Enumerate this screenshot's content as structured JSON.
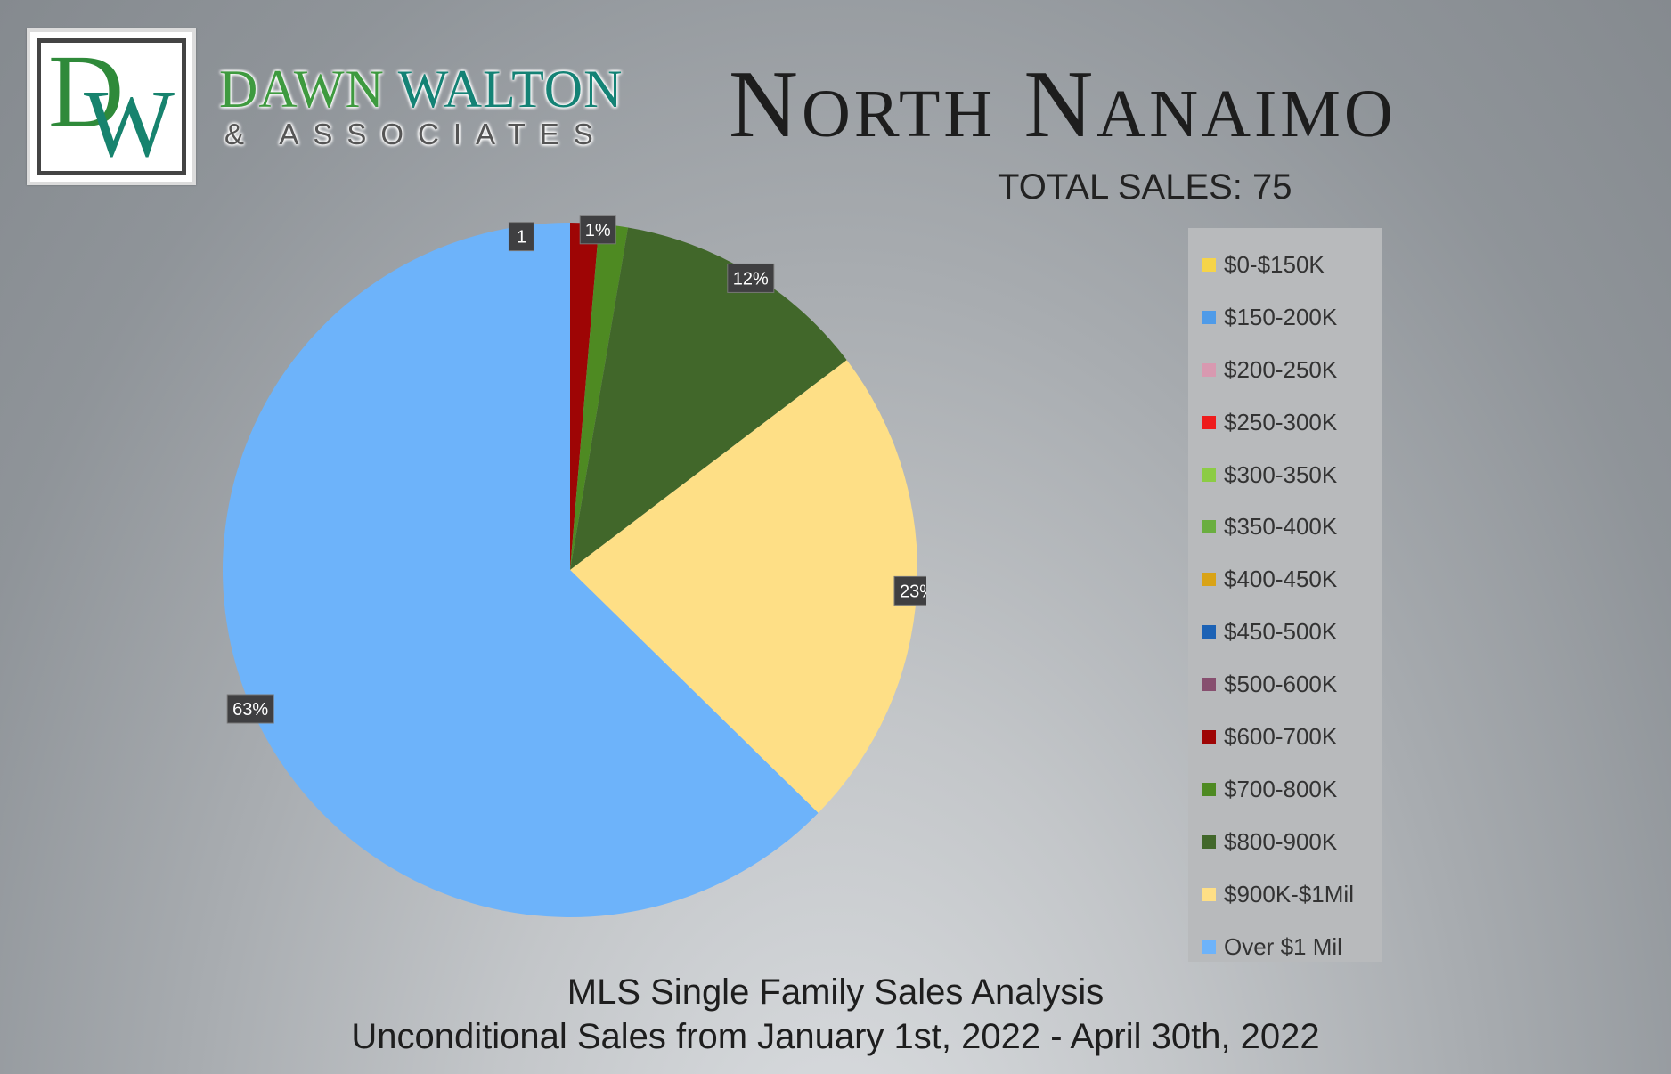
{
  "brand": {
    "monogram_d": "D",
    "monogram_w": "W",
    "name_first": "DAWN",
    "name_last": "WALTON",
    "subtitle": "& ASSOCIATES"
  },
  "header": {
    "title": "North Nanaimo",
    "total_sales": "TOTAL SALES: 75"
  },
  "footer": {
    "line1": "MLS Single Family Sales Analysis",
    "line2": "Unconditional Sales from January 1st, 2022 - April 30th, 2022"
  },
  "chart_data": {
    "type": "pie",
    "start_angle": "12 o'clock",
    "direction": "clockwise",
    "legend_position": "right",
    "slices": [
      {
        "label": "$0-$150K",
        "count": 0,
        "color": "#f6d449"
      },
      {
        "label": "$150-200K",
        "count": 0,
        "color": "#4f9be8"
      },
      {
        "label": "$200-250K",
        "count": 0,
        "color": "#d899b0"
      },
      {
        "label": "$250-300K",
        "count": 0,
        "color": "#ee1c1c"
      },
      {
        "label": "$300-350K",
        "count": 0,
        "color": "#8ccc44"
      },
      {
        "label": "$350-400K",
        "count": 0,
        "color": "#6aae3f"
      },
      {
        "label": "$400-450K",
        "count": 0,
        "color": "#d9a316"
      },
      {
        "label": "$450-500K",
        "count": 0,
        "color": "#1c62b5"
      },
      {
        "label": "$500-600K",
        "count": 0,
        "color": "#874f6f"
      },
      {
        "label": "$600-700K",
        "count": 1,
        "color": "#9e0505",
        "data_label": "1"
      },
      {
        "label": "$700-800K",
        "count": 1,
        "color": "#4e8a22",
        "data_label": "1%"
      },
      {
        "label": "$800-900K",
        "count": 9,
        "color": "#41672a",
        "data_label": "12%"
      },
      {
        "label": "$900K-$1Mil",
        "count": 17,
        "color": "#fedf86",
        "data_label": "23%"
      },
      {
        "label": "Over $1 Mil",
        "count": 47,
        "color": "#6db3fa",
        "data_label": "63%"
      }
    ]
  }
}
